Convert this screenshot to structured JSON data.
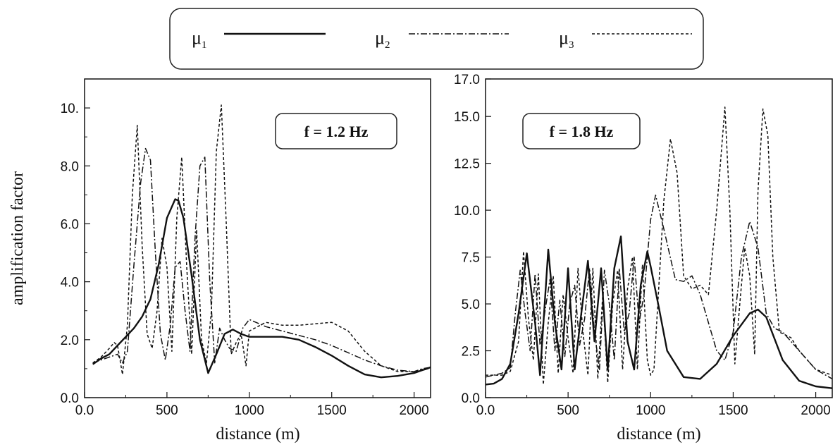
{
  "legend": {
    "entries": [
      {
        "symbol": "μ",
        "sub": "1",
        "style": "solid"
      },
      {
        "symbol": "μ",
        "sub": "2",
        "style": "dashdot"
      },
      {
        "symbol": "μ",
        "sub": "3",
        "style": "dashed"
      }
    ]
  },
  "ylabel": "amplification factor",
  "line_color": "#111111",
  "chart_data": [
    {
      "type": "line",
      "annotation": "f = 1.2 Hz",
      "xlabel": "distance (m)",
      "ylabel": "amplification factor",
      "xlim": [
        0,
        2100
      ],
      "ylim": [
        0,
        11
      ],
      "xticks": [
        0,
        500,
        1000,
        1500,
        2000
      ],
      "xtick_labels": [
        "0.0",
        "500",
        "1000",
        "1500",
        "2000"
      ],
      "yticks": [
        0,
        2,
        4,
        6,
        8,
        10
      ],
      "ytick_labels": [
        "0.0",
        "2.0",
        "4.0",
        "6.0",
        "8.0",
        "10."
      ],
      "grid": false,
      "series": [
        {
          "name": "μ1",
          "style": "solid",
          "x": [
            50,
            100,
            150,
            200,
            250,
            300,
            350,
            400,
            450,
            500,
            550,
            570,
            600,
            650,
            700,
            750,
            800,
            850,
            900,
            950,
            1000,
            1100,
            1200,
            1300,
            1400,
            1500,
            1600,
            1700,
            1800,
            1900,
            2000,
            2050,
            2080,
            2100
          ],
          "y": [
            1.15,
            1.35,
            1.5,
            1.8,
            2.1,
            2.4,
            2.8,
            3.4,
            4.6,
            6.2,
            6.85,
            6.8,
            6.2,
            4.2,
            2.0,
            0.85,
            1.5,
            2.2,
            2.35,
            2.2,
            2.1,
            2.1,
            2.1,
            2.0,
            1.75,
            1.45,
            1.1,
            0.8,
            0.7,
            0.75,
            0.85,
            0.95,
            1.0,
            1.05
          ]
        },
        {
          "name": "μ2",
          "style": "dashdot",
          "x": [
            50,
            100,
            150,
            200,
            230,
            260,
            300,
            340,
            370,
            400,
            430,
            460,
            490,
            520,
            550,
            580,
            610,
            640,
            670,
            700,
            730,
            760,
            790,
            820,
            850,
            880,
            920,
            960,
            1000,
            1100,
            1200,
            1300,
            1400,
            1500,
            1600,
            1700,
            1800,
            1900,
            2000,
            2050,
            2100
          ],
          "y": [
            1.2,
            1.3,
            1.4,
            1.5,
            1.2,
            1.6,
            4.6,
            7.4,
            8.6,
            8.2,
            5.0,
            2.2,
            1.3,
            2.5,
            4.5,
            4.7,
            3.0,
            1.6,
            5.5,
            8.0,
            8.3,
            4.0,
            1.2,
            2.4,
            2.0,
            1.7,
            1.6,
            2.4,
            2.7,
            2.45,
            2.3,
            2.15,
            2.0,
            1.8,
            1.55,
            1.3,
            1.1,
            0.95,
            0.9,
            1.0,
            1.05
          ]
        },
        {
          "name": "μ3",
          "style": "dashed",
          "x": [
            50,
            100,
            150,
            180,
            200,
            230,
            260,
            290,
            320,
            350,
            380,
            410,
            440,
            470,
            500,
            530,
            560,
            590,
            620,
            650,
            680,
            710,
            740,
            770,
            800,
            830,
            860,
            890,
            920,
            950,
            980,
            1000,
            1100,
            1200,
            1300,
            1400,
            1500,
            1600,
            1700,
            1800,
            1900,
            2000,
            2100
          ],
          "y": [
            1.2,
            1.4,
            1.7,
            1.9,
            1.8,
            0.8,
            2.5,
            7.0,
            9.4,
            5.2,
            2.2,
            1.7,
            3.0,
            5.5,
            4.5,
            1.6,
            6.2,
            8.3,
            4.5,
            1.5,
            5.8,
            2.0,
            1.2,
            3.0,
            8.5,
            10.1,
            6.0,
            1.5,
            1.9,
            2.2,
            1.1,
            2.3,
            2.6,
            2.5,
            2.5,
            2.55,
            2.6,
            2.3,
            1.6,
            1.1,
            0.9,
            0.9,
            1.05
          ]
        }
      ]
    },
    {
      "type": "line",
      "annotation": "f = 1.8 Hz",
      "xlabel": "distance (m)",
      "ylabel": "",
      "xlim": [
        0,
        2100
      ],
      "ylim": [
        0,
        17
      ],
      "xticks": [
        0,
        500,
        1000,
        1500,
        2000
      ],
      "xtick_labels": [
        "0.0",
        "500",
        "1000",
        "1500",
        "2000"
      ],
      "yticks": [
        0,
        2.5,
        5,
        7.5,
        10,
        12.5,
        15,
        17
      ],
      "ytick_labels": [
        "0.0",
        "2.5",
        "5.0",
        "7.5",
        "10.0",
        "12.5",
        "15.0",
        "17.0"
      ],
      "grid": false,
      "series": [
        {
          "name": "μ1",
          "style": "solid",
          "x": [
            0,
            50,
            100,
            150,
            200,
            250,
            300,
            330,
            380,
            420,
            460,
            500,
            540,
            580,
            620,
            660,
            700,
            740,
            780,
            820,
            860,
            900,
            940,
            980,
            1000,
            1050,
            1100,
            1200,
            1300,
            1400,
            1500,
            1600,
            1650,
            1700,
            1800,
            1900,
            2000,
            2100
          ],
          "y": [
            0.7,
            0.75,
            1.0,
            1.8,
            4.5,
            7.7,
            4.0,
            1.2,
            7.9,
            4.0,
            1.5,
            6.9,
            1.5,
            4.5,
            7.3,
            3.0,
            6.9,
            1.5,
            6.9,
            8.6,
            3.0,
            1.5,
            6.0,
            7.8,
            7.0,
            4.8,
            2.5,
            1.1,
            1.0,
            1.8,
            3.3,
            4.5,
            4.7,
            4.3,
            2.0,
            0.9,
            0.6,
            0.5
          ]
        },
        {
          "name": "μ2",
          "style": "dashdot",
          "x": [
            0,
            50,
            100,
            150,
            180,
            210,
            240,
            270,
            300,
            330,
            360,
            390,
            420,
            450,
            480,
            510,
            540,
            570,
            600,
            630,
            660,
            690,
            720,
            750,
            780,
            810,
            840,
            870,
            900,
            930,
            960,
            1000,
            1030,
            1080,
            1150,
            1200,
            1250,
            1300,
            1350,
            1400,
            1450,
            1500,
            1550,
            1600,
            1650,
            1700,
            1750,
            1800,
            1900,
            2000,
            2100
          ],
          "y": [
            1.1,
            1.2,
            1.3,
            1.6,
            4.5,
            6.8,
            4.5,
            2.5,
            6.6,
            2.8,
            4.6,
            6.3,
            2.5,
            5.2,
            2.2,
            5.0,
            6.0,
            2.8,
            4.2,
            6.9,
            3.5,
            1.5,
            6.8,
            5.0,
            2.0,
            6.9,
            3.5,
            4.5,
            7.5,
            4.0,
            5.5,
            9.5,
            10.8,
            9.0,
            6.3,
            6.2,
            6.5,
            5.5,
            4.0,
            2.5,
            2.0,
            3.5,
            7.5,
            9.4,
            8.0,
            4.5,
            3.7,
            3.5,
            2.5,
            1.5,
            1.0
          ]
        },
        {
          "name": "μ3",
          "style": "dashed",
          "x": [
            0,
            50,
            100,
            150,
            200,
            230,
            260,
            290,
            320,
            350,
            380,
            410,
            440,
            470,
            500,
            530,
            560,
            590,
            620,
            650,
            680,
            710,
            740,
            770,
            800,
            830,
            860,
            890,
            920,
            950,
            980,
            1000,
            1020,
            1050,
            1080,
            1120,
            1160,
            1200,
            1250,
            1300,
            1350,
            1400,
            1450,
            1480,
            1510,
            1540,
            1570,
            1600,
            1630,
            1650,
            1680,
            1710,
            1740,
            1780,
            1850,
            1900,
            2000,
            2100
          ],
          "y": [
            1.2,
            1.2,
            1.2,
            1.4,
            3.0,
            7.8,
            4.2,
            2.0,
            6.6,
            0.7,
            4.0,
            6.5,
            1.3,
            5.5,
            3.2,
            1.3,
            6.9,
            3.5,
            1.2,
            6.9,
            1.0,
            5.5,
            0.8,
            5.0,
            6.8,
            1.5,
            5.8,
            7.5,
            1.5,
            7.1,
            2.0,
            1.2,
            1.5,
            6.0,
            10.5,
            13.8,
            12.0,
            6.5,
            5.8,
            6.0,
            5.5,
            10.0,
            15.5,
            10.0,
            1.8,
            5.0,
            8.0,
            6.5,
            2.3,
            11.0,
            15.4,
            14.0,
            7.5,
            3.5,
            3.2,
            2.5,
            1.5,
            1.2
          ]
        }
      ]
    }
  ]
}
